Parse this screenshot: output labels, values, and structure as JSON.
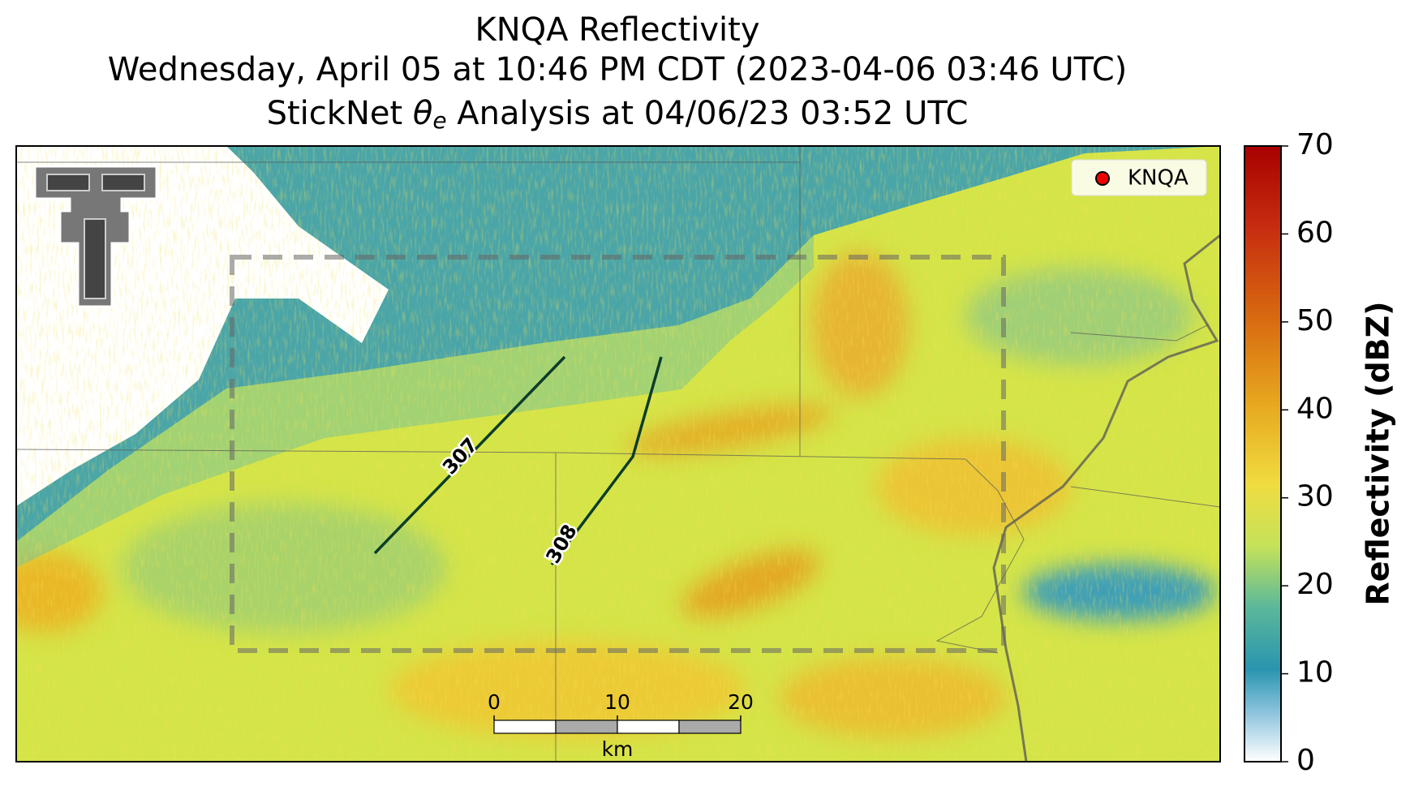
{
  "title": {
    "line1": "KNQA Reflectivity",
    "line2": "Wednesday, April 05 at 10:46 PM CDT (2023-04-06 03:46 UTC)",
    "line3": {
      "prefix": "StickNet ",
      "symbol": "θ",
      "subscript": "e",
      "suffix": " Analysis at 04/06/23 03:52 UTC"
    }
  },
  "legend": {
    "label": "KNQA"
  },
  "contours": [
    {
      "level": 307
    },
    {
      "level": 308
    }
  ],
  "scale_bar": {
    "ticks": [
      0,
      10,
      20
    ],
    "unit": "km"
  },
  "colorbar": {
    "label": "Reflectivity (dBZ)",
    "lim": [
      0,
      70
    ],
    "ticks": [
      0,
      10,
      20,
      30,
      40,
      50,
      60,
      70
    ]
  }
}
